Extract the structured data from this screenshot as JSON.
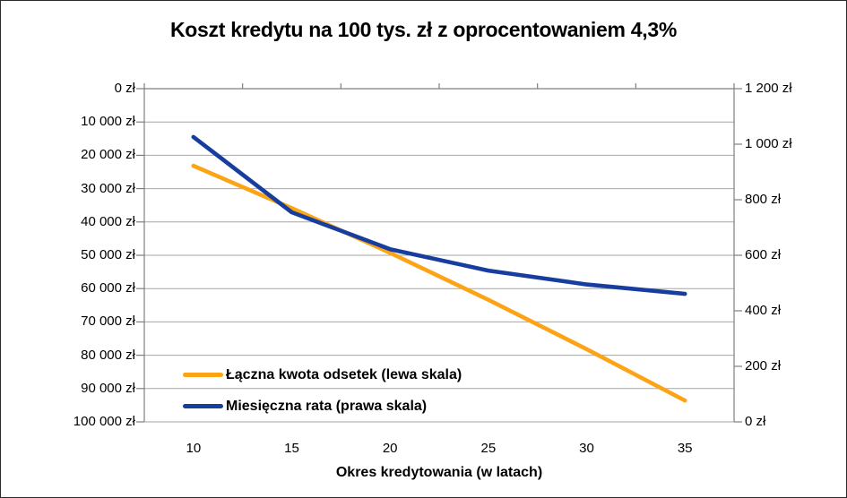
{
  "chart_data": {
    "type": "line",
    "title": "Koszt kredytu na 100 tys. zł z oprocentowaniem 4,3%",
    "xlabel": "Okres kredytowania (w latach)",
    "x": [
      10,
      15,
      20,
      25,
      30,
      35
    ],
    "x_tick_labels": [
      "10",
      "15",
      "20",
      "25",
      "30",
      "35"
    ],
    "left_axis": {
      "title": "",
      "min": 0,
      "max": 100000,
      "step": 10000,
      "inverted": true,
      "tick_labels": [
        "0 zł",
        "10 000 zł",
        "20 000 zł",
        "30 000 zł",
        "40 000 zł",
        "50 000 zł",
        "60 000 zł",
        "70 000 zł",
        "80 000 zł",
        "90 000 zł",
        "100 000 zł"
      ]
    },
    "right_axis": {
      "title": "",
      "min": 0,
      "max": 1200,
      "step": 200,
      "tick_labels": [
        "1 200 zł",
        "1 000 zł",
        "800 zł",
        "600 zł",
        "400 zł",
        "200 zł",
        "0 zł"
      ]
    },
    "series": [
      {
        "name": "Łączna kwota odsetek (lewa skala)",
        "axis": "left",
        "color": "#FCA415",
        "values": [
          23150,
          35860,
          49270,
          63360,
          78160,
          93600
        ]
      },
      {
        "name": "Miesięczna rata (prawa skala)",
        "axis": "right",
        "color": "#173D9E",
        "values": [
          1026,
          755,
          622,
          545,
          495,
          461
        ]
      }
    ],
    "legend_position": "inside-bottom-left",
    "grid": true,
    "colors": {
      "grid": "#A6A6A6",
      "axis": "#7F7F7F",
      "text": "#000000",
      "background": "#FFFFFF",
      "border": "#2B2B2B"
    }
  }
}
